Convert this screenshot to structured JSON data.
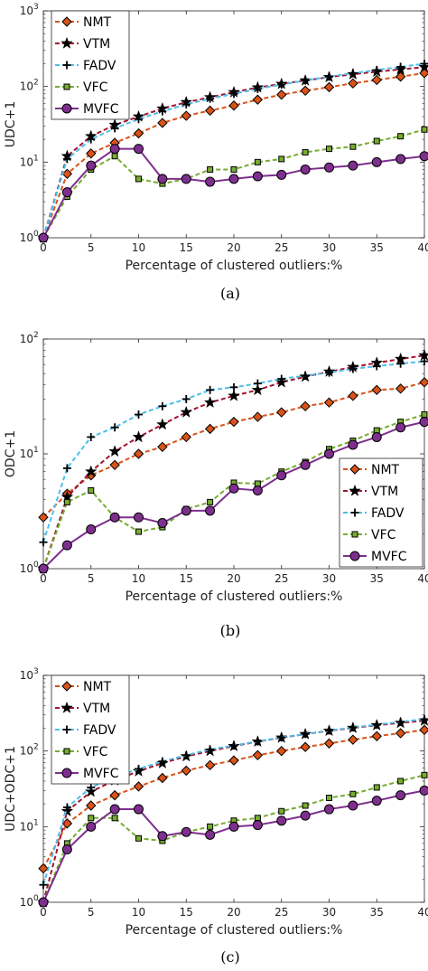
{
  "chart_data": [
    {
      "type": "line",
      "caption": "(a)",
      "xlabel": "Percentage of clustered outliers:%",
      "ylabel": "UDC+1",
      "yscale": "log",
      "xlim": [
        0,
        40
      ],
      "ylim": [
        1,
        1000
      ],
      "xticks": [
        "0",
        "5",
        "10",
        "15",
        "20",
        "25",
        "30",
        "35",
        "40"
      ],
      "yticks": [
        "10",
        "10",
        "10",
        "10"
      ],
      "yticks_exp": [
        "0",
        "1",
        "2",
        "3"
      ],
      "grid": false,
      "legend_position": "top-left",
      "x": [
        0,
        2.5,
        5,
        7.5,
        10,
        12.5,
        15,
        17.5,
        20,
        22.5,
        25,
        27.5,
        30,
        32.5,
        35,
        37.5,
        40
      ],
      "series": [
        {
          "name": "NMT",
          "values": [
            1,
            7,
            13,
            18,
            24,
            33,
            41,
            48,
            56,
            67,
            78,
            88,
            98,
            110,
            122,
            135,
            150
          ]
        },
        {
          "name": "VTM",
          "values": [
            1,
            12,
            22,
            31,
            40,
            51,
            62,
            72,
            84,
            97,
            108,
            120,
            133,
            145,
            157,
            168,
            180
          ]
        },
        {
          "name": "FADV",
          "values": [
            1,
            11,
            20,
            28,
            37,
            47,
            58,
            69,
            80,
            93,
            106,
            120,
            135,
            150,
            165,
            182,
            200
          ]
        },
        {
          "name": "VFC",
          "values": [
            1,
            3.5,
            8,
            12,
            6,
            5.2,
            6,
            8,
            8,
            10,
            11,
            13.5,
            15,
            16,
            19,
            22,
            27
          ]
        },
        {
          "name": "MVFC",
          "values": [
            1,
            4,
            9,
            15,
            15,
            6,
            6,
            5.5,
            6,
            6.5,
            6.8,
            8,
            8.5,
            9,
            10,
            11,
            12
          ]
        }
      ]
    },
    {
      "type": "line",
      "caption": "(b)",
      "xlabel": "Percentage of clustered outliers:%",
      "ylabel": "ODC+1",
      "yscale": "log",
      "xlim": [
        0,
        40
      ],
      "ylim": [
        1,
        100
      ],
      "xticks": [
        "0",
        "5",
        "10",
        "15",
        "20",
        "25",
        "30",
        "35",
        "40"
      ],
      "yticks": [
        "10",
        "10",
        "10"
      ],
      "yticks_exp": [
        "0",
        "1",
        "2"
      ],
      "grid": false,
      "legend_position": "bottom-right",
      "x": [
        0,
        2.5,
        5,
        7.5,
        10,
        12.5,
        15,
        17.5,
        20,
        22.5,
        25,
        27.5,
        30,
        32.5,
        35,
        37.5,
        40
      ],
      "series": [
        {
          "name": "NMT",
          "values": [
            2.8,
            4.5,
            6.5,
            8,
            10,
            11.5,
            14,
            16.5,
            19,
            21,
            23,
            26,
            28,
            32,
            36,
            37,
            42
          ]
        },
        {
          "name": "VTM",
          "values": [
            1,
            4.2,
            7,
            10.5,
            14,
            18,
            23,
            28,
            32,
            36,
            42,
            47,
            52,
            57,
            62,
            67,
            72
          ]
        },
        {
          "name": "FADV",
          "values": [
            1.7,
            7.5,
            14,
            17,
            22,
            26,
            30,
            36,
            38,
            41,
            45,
            48,
            51,
            55,
            58,
            61,
            64
          ]
        },
        {
          "name": "VFC",
          "values": [
            1,
            3.8,
            4.8,
            2.8,
            2.1,
            2.3,
            3.3,
            3.8,
            5.6,
            5.5,
            7,
            8.5,
            11,
            13,
            16,
            19,
            22
          ]
        },
        {
          "name": "MVFC",
          "values": [
            1,
            1.6,
            2.2,
            2.8,
            2.8,
            2.5,
            3.2,
            3.2,
            5,
            4.8,
            6.5,
            8,
            10,
            12,
            14,
            17,
            19
          ]
        }
      ]
    },
    {
      "type": "line",
      "caption": "(c)",
      "xlabel": "Percentage of clustered outliers:%",
      "ylabel": "UDC+ODC+1",
      "yscale": "log",
      "xlim": [
        0,
        40
      ],
      "ylim": [
        1,
        1000
      ],
      "xticks": [
        "0",
        "5",
        "10",
        "15",
        "20",
        "25",
        "30",
        "35",
        "40"
      ],
      "yticks": [
        "10",
        "10",
        "10",
        "10"
      ],
      "yticks_exp": [
        "0",
        "1",
        "2",
        "3"
      ],
      "grid": false,
      "legend_position": "top-left",
      "x": [
        0,
        2.5,
        5,
        7.5,
        10,
        12.5,
        15,
        17.5,
        20,
        22.5,
        25,
        27.5,
        30,
        32.5,
        35,
        37.5,
        40
      ],
      "series": [
        {
          "name": "NMT",
          "values": [
            2.8,
            11,
            19,
            26,
            34,
            44,
            55,
            65,
            75,
            88,
            100,
            113,
            126,
            141,
            157,
            172,
            190
          ]
        },
        {
          "name": "VTM",
          "values": [
            1,
            16,
            29,
            41,
            54,
            69,
            85,
            100,
            116,
            133,
            150,
            167,
            185,
            202,
            219,
            235,
            252
          ]
        },
        {
          "name": "FADV",
          "values": [
            1.7,
            18,
            33,
            45,
            58,
            73,
            88,
            105,
            118,
            134,
            151,
            168,
            186,
            205,
            223,
            243,
            264
          ]
        },
        {
          "name": "VFC",
          "values": [
            1,
            6,
            13,
            13,
            7,
            6.5,
            8.5,
            10,
            12,
            13,
            16,
            19,
            24,
            27,
            33,
            40,
            48
          ]
        },
        {
          "name": "MVFC",
          "values": [
            1,
            5,
            10,
            17,
            17,
            7.5,
            8.5,
            7.8,
            10,
            10.5,
            12,
            14,
            17,
            19,
            22,
            26,
            30
          ]
        }
      ]
    }
  ],
  "styles": {
    "NMT": {
      "color": "#d95319",
      "marker": "diamond",
      "dash": "5,3",
      "marker_fill": "#d95319"
    },
    "VTM": {
      "color": "#a2142f",
      "marker": "star",
      "dash": "5,3",
      "marker_fill": "#000000"
    },
    "FADV": {
      "color": "#4dbeee",
      "marker": "plus",
      "dash": "5,3",
      "marker_fill": "#000000"
    },
    "VFC": {
      "color": "#77ac30",
      "marker": "square",
      "dash": "5,3",
      "marker_fill": "#77ac30"
    },
    "MVFC": {
      "color": "#7e2f8e",
      "marker": "circle",
      "dash": "",
      "marker_fill": "#7e2f8e"
    }
  }
}
